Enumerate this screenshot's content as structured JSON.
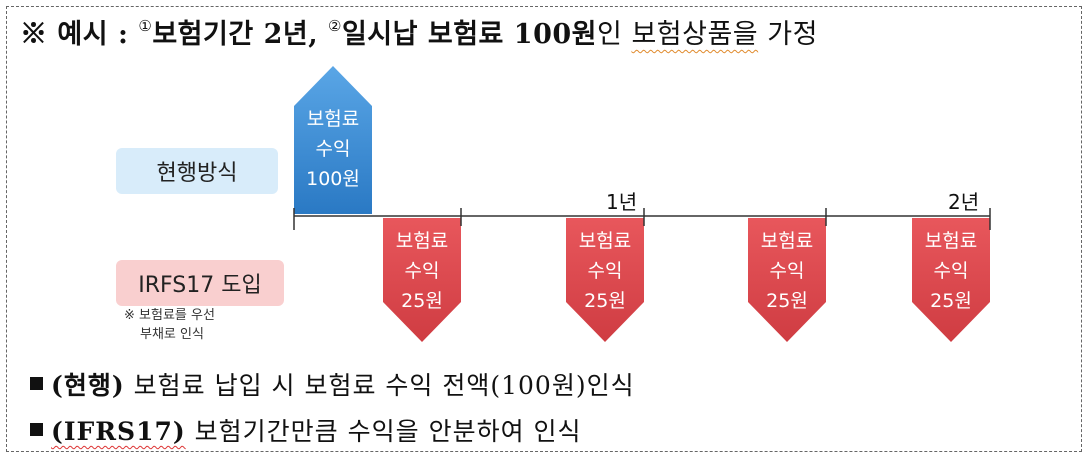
{
  "header": {
    "prefix": "※ 예시 : ",
    "marker1": "①",
    "part1": "보험기간 2년, ",
    "marker2": "②",
    "part2": "일시납 보험료 100원",
    "part3": "인 ",
    "part4": "보험상품을",
    "part5": " 가정"
  },
  "labels": {
    "current": "현행방식",
    "ifrs": "IRFS17 도입",
    "note_line1": "※ 보험료를 우선",
    "note_line2": "부채로 인식"
  },
  "timeline": {
    "tick_1": "1년",
    "tick_2": "2년"
  },
  "current_arrow": {
    "line1": "보험료",
    "line2": "수익",
    "line3": "100원"
  },
  "ifrs_arrows": [
    {
      "line1": "보험료",
      "line2": "수익",
      "line3": "25원"
    },
    {
      "line1": "보험료",
      "line2": "수익",
      "line3": "25원"
    },
    {
      "line1": "보험료",
      "line2": "수익",
      "line3": "25원"
    },
    {
      "line1": "보험료",
      "line2": "수익",
      "line3": "25원"
    }
  ],
  "bullets": {
    "b1_bold": "(현행)",
    "b1_text": " 보험료 납입 시 보험료 수익 전액(100원)인식",
    "b2_bold": "(IFRS17)",
    "b2_text": " 보험기간만큼 수익을 안분하여 인식"
  },
  "colors": {
    "blue_arrow": "#2f86d3",
    "red_arrow": "#d9444a",
    "current_box": "#d8ecfa",
    "ifrs_box": "#f9cfcf"
  }
}
